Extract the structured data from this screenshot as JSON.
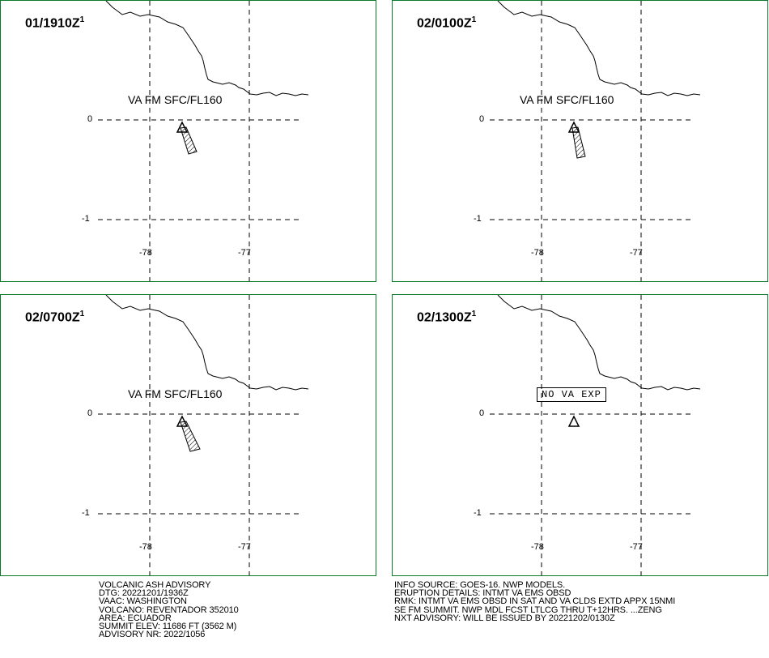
{
  "panels": [
    {
      "time": "01/1910Z",
      "sup": "1",
      "label": "VA FM SFC/FL160",
      "no_va": "",
      "plume": "plume-1"
    },
    {
      "time": "02/0100Z",
      "sup": "1",
      "label": "VA FM SFC/FL160",
      "no_va": "",
      "plume": "plume-2"
    },
    {
      "time": "02/0700Z",
      "sup": "1",
      "label": "VA FM SFC/FL160",
      "no_va": "",
      "plume": "plume-3"
    },
    {
      "time": "02/1300Z",
      "sup": "1",
      "label": "",
      "no_va": "NO VA EXP",
      "plume": "none"
    }
  ],
  "axes": {
    "lat_ticks": [
      "0",
      "-1"
    ],
    "lon_ticks": [
      "-78",
      "-77"
    ]
  },
  "advisory_left": [
    "VOLCANIC ASH ADVISORY",
    "DTG: 20221201/1936Z",
    "VAAC: WASHINGTON",
    "VOLCANO: REVENTADOR 352010",
    "AREA: ECUADOR",
    "SUMMIT ELEV: 11686 FT (3562 M)",
    "ADVISORY NR: 2022/1056"
  ],
  "advisory_right": [
    "INFO SOURCE: GOES-16. NWP MODELS.",
    "ERUPTION DETAILS: INTMT VA EMS OBSD",
    "RMK: INTMT VA EMS OBSD IN SAT AND VA CLDS EXTD APPX 15NMI",
    "SE FM SUMMIT. NWP MDL FCST LTLCG THRU T+12HRS. ...ZENG",
    "NXT ADVISORY: WILL BE ISSUED BY 20221202/0130Z"
  ],
  "colors": {
    "frame": "#0a7a2a",
    "ink": "#000000"
  }
}
